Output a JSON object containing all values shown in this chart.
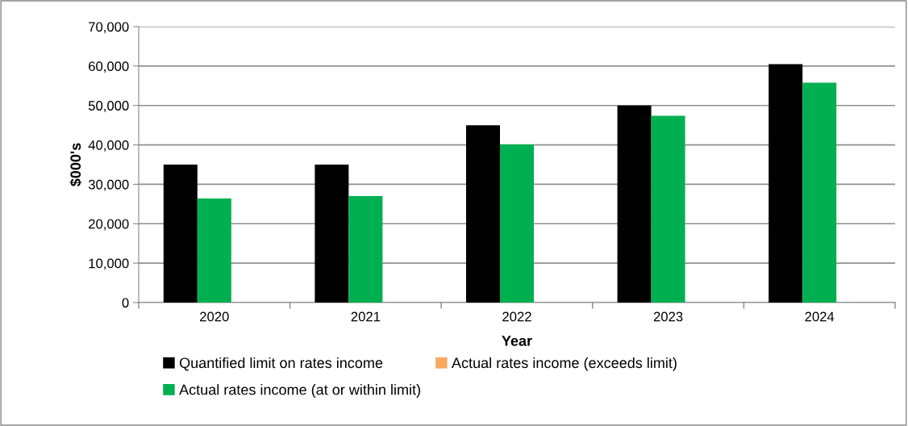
{
  "chart_data": {
    "type": "bar",
    "xlabel": "Year",
    "ylabel": "$000's",
    "categories": [
      "2020",
      "2021",
      "2022",
      "2023",
      "2024"
    ],
    "series": [
      {
        "name": "Quantified limit on rates income",
        "color": "#000000",
        "values": [
          35000,
          35000,
          45000,
          50000,
          60500
        ]
      },
      {
        "name": "Actual rates income (at or within limit)",
        "color": "#00b050",
        "values": [
          26400,
          27000,
          40100,
          47400,
          55800
        ]
      },
      {
        "name": "Actual rates income (exceeds limit)",
        "color": "#f9a862",
        "values": [
          null,
          null,
          null,
          null,
          null
        ]
      }
    ],
    "ylim": [
      0,
      70000
    ],
    "yticks": [
      {
        "value": 0,
        "label": "0"
      },
      {
        "value": 10000,
        "label": "10,000"
      },
      {
        "value": 20000,
        "label": "20,000"
      },
      {
        "value": 30000,
        "label": "30,000"
      },
      {
        "value": 40000,
        "label": "40,000"
      },
      {
        "value": 50000,
        "label": "50,000"
      },
      {
        "value": 60000,
        "label": "60,000"
      },
      {
        "value": 70000,
        "label": "70,000"
      }
    ],
    "grid": "y",
    "legend": "bottom"
  }
}
